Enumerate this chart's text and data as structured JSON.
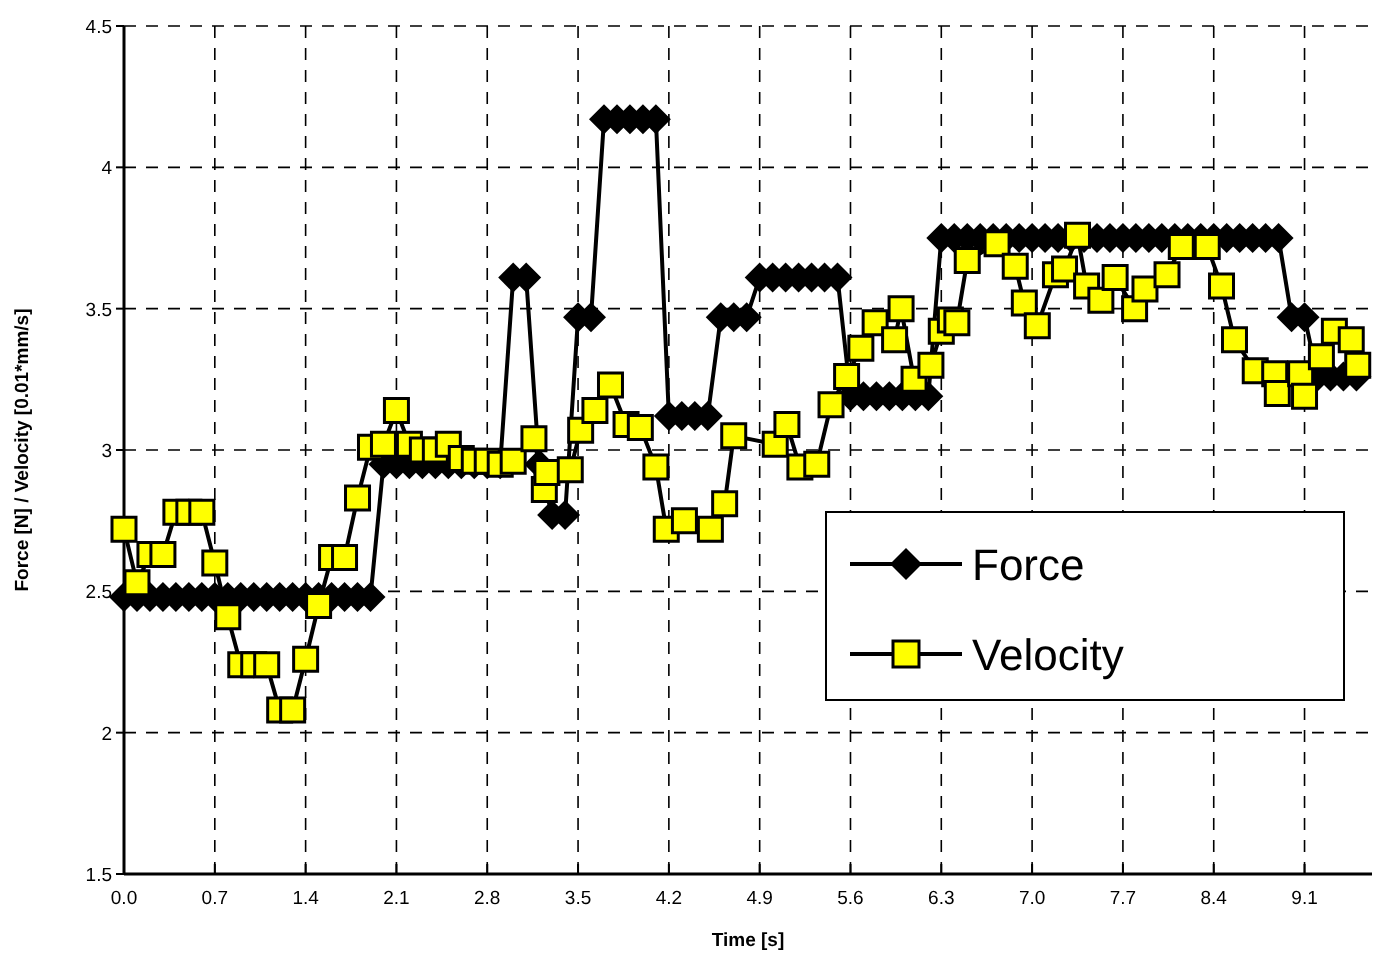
{
  "chart_data": {
    "type": "line",
    "xlabel": "Time [s]",
    "ylabel": "Force [N] / Velocity [0.01*mm/s]",
    "xlim": [
      0,
      9.62
    ],
    "ylim": [
      1.5,
      4.5
    ],
    "xticks": [
      {
        "value": 0,
        "label": "0.0"
      },
      0.7,
      1.4,
      2.1,
      2.8,
      3.5,
      4.2,
      4.9,
      5.6,
      6.3,
      {
        "value": 7,
        "label": "7.0"
      },
      7.7,
      8.4,
      9.1
    ],
    "yticks": [
      1.5,
      2,
      2.5,
      3,
      3.5,
      4,
      4.5
    ],
    "grid": true,
    "legend": "right",
    "line_style": "solid",
    "series": [
      {
        "name": "Force",
        "color": "#000000",
        "marker": "diamond",
        "x": [
          0,
          0.1,
          0.2,
          0.3,
          0.4,
          0.5,
          0.6,
          0.7,
          0.8,
          0.9,
          1,
          1.1,
          1.2,
          1.3,
          1.4,
          1.5,
          1.6,
          1.7,
          1.8,
          1.9,
          2,
          2.1,
          2.2,
          2.3,
          2.4,
          2.5,
          2.6,
          2.7,
          2.8,
          2.9,
          3,
          3.1,
          3.2,
          3.3,
          3.4,
          3.5,
          3.6,
          3.7,
          3.8,
          3.9,
          4,
          4.1,
          4.2,
          4.3,
          4.4,
          4.5,
          4.6,
          4.7,
          4.8,
          4.9,
          5,
          5.1,
          5.2,
          5.3,
          5.4,
          5.5,
          5.6,
          5.7,
          5.8,
          5.9,
          6,
          6.1,
          6.2,
          6.3,
          6.4,
          6.5,
          6.6,
          6.7,
          6.8,
          6.9,
          7,
          7.1,
          7.2,
          7.3,
          7.4,
          7.5,
          7.6,
          7.7,
          7.8,
          7.9,
          8,
          8.1,
          8.2,
          8.3,
          8.4,
          8.5,
          8.6,
          8.7,
          8.8,
          8.9,
          9,
          9.1,
          9.2,
          9.3,
          9.4,
          9.5
        ],
        "values": [
          2.48,
          2.48,
          2.48,
          2.48,
          2.48,
          2.48,
          2.48,
          2.48,
          2.48,
          2.48,
          2.48,
          2.48,
          2.48,
          2.48,
          2.48,
          2.48,
          2.48,
          2.48,
          2.48,
          2.48,
          2.95,
          2.95,
          2.95,
          2.95,
          2.95,
          2.95,
          2.95,
          2.95,
          2.95,
          2.95,
          3.61,
          3.61,
          2.95,
          2.77,
          2.77,
          3.47,
          3.47,
          4.17,
          4.17,
          4.17,
          4.17,
          4.17,
          3.12,
          3.12,
          3.12,
          3.12,
          3.47,
          3.47,
          3.47,
          3.61,
          3.61,
          3.61,
          3.61,
          3.61,
          3.61,
          3.61,
          3.19,
          3.19,
          3.19,
          3.19,
          3.19,
          3.19,
          3.19,
          3.75,
          3.75,
          3.75,
          3.75,
          3.75,
          3.75,
          3.75,
          3.75,
          3.75,
          3.75,
          3.75,
          3.75,
          3.75,
          3.75,
          3.75,
          3.75,
          3.75,
          3.75,
          3.75,
          3.75,
          3.75,
          3.75,
          3.75,
          3.75,
          3.75,
          3.75,
          3.75,
          3.47,
          3.47,
          3.26,
          3.26,
          3.26,
          3.26
        ]
      },
      {
        "name": "Velocity",
        "color": "#ffff00",
        "marker": "square",
        "x": [
          0,
          0.1,
          0.2,
          0.3,
          0.4,
          0.5,
          0.6,
          0.7,
          0.8,
          0.9,
          1,
          1.1,
          1.2,
          1.3,
          1.4,
          1.5,
          1.6,
          1.7,
          1.8,
          1.9,
          2,
          2.1,
          2.2,
          2.3,
          2.4,
          2.5,
          2.6,
          2.7,
          2.8,
          2.9,
          3.0,
          3.16,
          3.24,
          3.26,
          3.44,
          3.52,
          3.63,
          3.75,
          3.87,
          3.98,
          4.1,
          4.18,
          4.32,
          4.52,
          4.63,
          4.7,
          5.02,
          5.11,
          5.21,
          5.34,
          5.45,
          5.57,
          5.68,
          5.79,
          5.94,
          5.99,
          6.09,
          6.22,
          6.3,
          6.37,
          6.42,
          6.5,
          6.73,
          6.87,
          6.94,
          7.04,
          7.18,
          7.25,
          7.35,
          7.42,
          7.53,
          7.64,
          7.79,
          7.87,
          8.04,
          8.15,
          8.35,
          8.46,
          8.56,
          8.72,
          8.87,
          8.89,
          9.07,
          9.1,
          9.23,
          9.33,
          9.46,
          9.51
        ],
        "values": [
          2.72,
          2.53,
          2.63,
          2.63,
          2.78,
          2.78,
          2.78,
          2.6,
          2.41,
          2.24,
          2.24,
          2.24,
          2.08,
          2.08,
          2.26,
          2.45,
          2.62,
          2.62,
          2.83,
          3.01,
          3.02,
          3.14,
          3.02,
          3.0,
          3.0,
          3.02,
          2.97,
          2.96,
          2.96,
          2.95,
          2.96,
          3.04,
          2.86,
          2.92,
          2.93,
          3.07,
          3.14,
          3.23,
          3.09,
          3.08,
          2.94,
          2.72,
          2.75,
          2.72,
          2.81,
          3.05,
          3.02,
          3.09,
          2.94,
          2.95,
          3.16,
          3.26,
          3.36,
          3.45,
          3.39,
          3.5,
          3.25,
          3.3,
          3.42,
          3.46,
          3.45,
          3.67,
          3.73,
          3.65,
          3.52,
          3.44,
          3.62,
          3.64,
          3.76,
          3.58,
          3.53,
          3.61,
          3.5,
          3.57,
          3.62,
          3.72,
          3.72,
          3.58,
          3.39,
          3.28,
          3.27,
          3.2,
          3.27,
          3.19,
          3.33,
          3.42,
          3.39,
          3.3
        ]
      }
    ]
  }
}
